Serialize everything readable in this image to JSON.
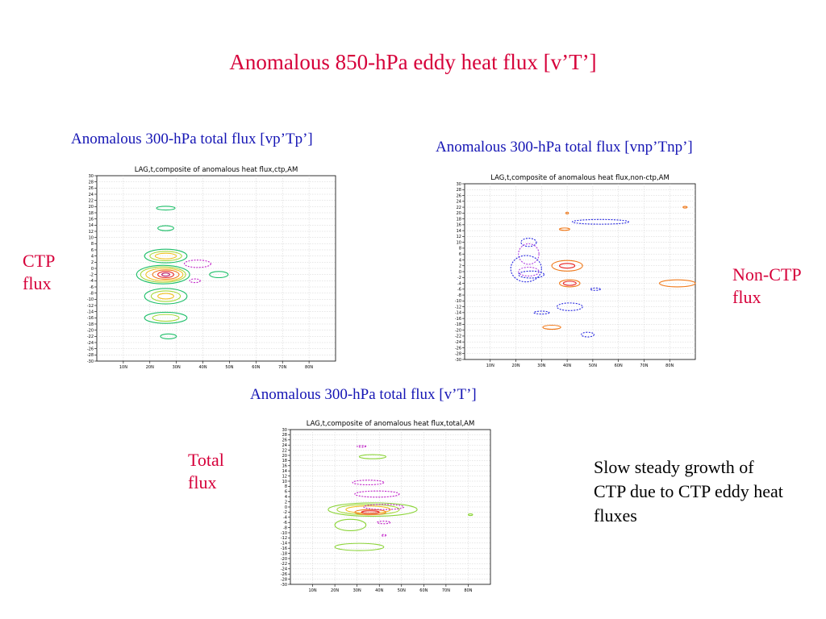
{
  "slide": {
    "title": "Anomalous 850-hPa eddy heat flux [v’T’]",
    "note": "Slow steady growth of CTP due to CTP eddy heat fluxes"
  },
  "panels": {
    "ctp": {
      "title": "Anomalous 300-hPa  total flux [vp’Tp’]",
      "side_label": "CTP flux"
    },
    "nonctp": {
      "title": "Anomalous 300-hPa  total flux [vnp’Tnp’]",
      "side_label": "Non-CTP flux"
    },
    "total": {
      "title": "Anomalous 300-hPa  total flux [v’T’]",
      "side_label": "Total flux"
    }
  },
  "chart_data": [
    {
      "id": "ctp",
      "type": "contour",
      "title": "LAG,t,composite of anomalous heat flux,ctp,AM",
      "xlim": [
        0,
        90
      ],
      "ylim": [
        -30,
        30
      ],
      "x_ticks": [
        "10N",
        "20N",
        "30N",
        "40N",
        "50N",
        "60N",
        "70N",
        "80N"
      ],
      "y_ticks": [
        "30",
        "28",
        "26",
        "24",
        "22",
        "20",
        "18",
        "16",
        "14",
        "12",
        "10",
        "8",
        "6",
        "4",
        "2",
        "0",
        "-2",
        "-4",
        "-6",
        "-8",
        "-10",
        "-12",
        "-14",
        "-16",
        "-18",
        "-20",
        "-22",
        "-24",
        "-26",
        "-28",
        "-30"
      ],
      "grid": true,
      "contours": [
        {
          "color": "#1fbf6a",
          "cx": 26,
          "cy": 19.5,
          "rx": 3.5,
          "ry": 0.6
        },
        {
          "color": "#1fbf6a",
          "cx": 26,
          "cy": 13,
          "rx": 3,
          "ry": 0.8
        },
        {
          "color": "#1fbf6a",
          "cx": 26,
          "cy": 4,
          "rx": 8,
          "ry": 2.2
        },
        {
          "color": "#a6d93a",
          "cx": 26,
          "cy": 4,
          "rx": 6,
          "ry": 1.5
        },
        {
          "color": "#f0c020",
          "cx": 26,
          "cy": 4,
          "rx": 4,
          "ry": 0.9
        },
        {
          "color": "#1fbf6a",
          "cx": 25,
          "cy": -2,
          "rx": 10,
          "ry": 3
        },
        {
          "color": "#a6d93a",
          "cx": 25,
          "cy": -2,
          "rx": 8.5,
          "ry": 2.5
        },
        {
          "color": "#f0c020",
          "cx": 25.5,
          "cy": -2,
          "rx": 7,
          "ry": 2
        },
        {
          "color": "#f07818",
          "cx": 26,
          "cy": -2,
          "rx": 5,
          "ry": 1.5
        },
        {
          "color": "#e82020",
          "cx": 26,
          "cy": -2,
          "rx": 3,
          "ry": 1
        },
        {
          "color": "#b01060",
          "cx": 26,
          "cy": -2,
          "rx": 1.5,
          "ry": 0.5
        },
        {
          "color": "#1fbf6a",
          "cx": 26,
          "cy": -9,
          "rx": 8,
          "ry": 2.5
        },
        {
          "color": "#a6d93a",
          "cx": 26,
          "cy": -9,
          "rx": 5.5,
          "ry": 1.7
        },
        {
          "color": "#f0c020",
          "cx": 26,
          "cy": -9,
          "rx": 3,
          "ry": 0.9
        },
        {
          "color": "#1fbf6a",
          "cx": 26,
          "cy": -16,
          "rx": 8,
          "ry": 1.8
        },
        {
          "color": "#a6d93a",
          "cx": 26,
          "cy": -16,
          "rx": 5,
          "ry": 1.1
        },
        {
          "color": "#1fbf6a",
          "cx": 27,
          "cy": -22,
          "rx": 3,
          "ry": 0.8
        },
        {
          "color": "#1fbf6a",
          "cx": 46,
          "cy": -2,
          "rx": 3.5,
          "ry": 1
        },
        {
          "color": "#c020c8",
          "cx": 38,
          "cy": 1.5,
          "rx": 5,
          "ry": 1.2,
          "dash": true
        },
        {
          "color": "#c020c8",
          "cx": 37,
          "cy": -4,
          "rx": 2,
          "ry": 0.6,
          "dash": true
        }
      ]
    },
    {
      "id": "nonctp",
      "type": "contour",
      "title": "LAG,t,composite of anomalous heat flux,non-ctp,AM",
      "xlim": [
        0,
        90
      ],
      "ylim": [
        -30,
        30
      ],
      "x_ticks": [
        "10N",
        "20N",
        "30N",
        "40N",
        "50N",
        "60N",
        "70N",
        "80N"
      ],
      "y_ticks": [
        "30",
        "28",
        "26",
        "24",
        "22",
        "20",
        "18",
        "16",
        "14",
        "12",
        "10",
        "8",
        "6",
        "4",
        "2",
        "0",
        "-2",
        "-4",
        "-6",
        "-8",
        "-10",
        "-12",
        "-14",
        "-16",
        "-18",
        "-20",
        "-22",
        "-24",
        "-26",
        "-28",
        "-30"
      ],
      "grid": true,
      "contours": [
        {
          "color": "#2a2ae0",
          "cx": 53,
          "cy": 17,
          "rx": 11,
          "ry": 0.8,
          "dash": true
        },
        {
          "color": "#f07818",
          "cx": 40,
          "cy": 20,
          "rx": 0.5,
          "ry": 0.3
        },
        {
          "color": "#f07818",
          "cx": 39,
          "cy": 14.5,
          "rx": 2,
          "ry": 0.4
        },
        {
          "color": "#2a2ae0",
          "cx": 25,
          "cy": 10,
          "rx": 3,
          "ry": 1.4,
          "dash": true
        },
        {
          "color": "#b040e0",
          "cx": 25,
          "cy": 6,
          "rx": 4,
          "ry": 3.5,
          "dash": true
        },
        {
          "color": "#2a2ae0",
          "cx": 24,
          "cy": 1,
          "rx": 6,
          "ry": 4.5,
          "dash": true
        },
        {
          "color": "#b040e0",
          "cx": 25,
          "cy": 0,
          "rx": 4,
          "ry": 1.5,
          "dash": true
        },
        {
          "color": "#2a2ae0",
          "cx": 26,
          "cy": -1,
          "rx": 5,
          "ry": 1.2,
          "dash": true
        },
        {
          "color": "#f07818",
          "cx": 40,
          "cy": 2,
          "rx": 6,
          "ry": 1.8
        },
        {
          "color": "#e82020",
          "cx": 40,
          "cy": 2,
          "rx": 3,
          "ry": 0.8
        },
        {
          "color": "#f07818",
          "cx": 41,
          "cy": -4,
          "rx": 4,
          "ry": 1.2
        },
        {
          "color": "#e82020",
          "cx": 41,
          "cy": -4,
          "rx": 2.5,
          "ry": 0.7
        },
        {
          "color": "#2a2ae0",
          "cx": 51,
          "cy": -6,
          "rx": 2,
          "ry": 0.4,
          "dash": true
        },
        {
          "color": "#2a2ae0",
          "cx": 41,
          "cy": -12,
          "rx": 5,
          "ry": 1.3,
          "dash": true
        },
        {
          "color": "#2a2ae0",
          "cx": 30,
          "cy": -14,
          "rx": 3,
          "ry": 0.5,
          "dash": true
        },
        {
          "color": "#f07818",
          "cx": 34,
          "cy": -19,
          "rx": 3.5,
          "ry": 0.7
        },
        {
          "color": "#2a2ae0",
          "cx": 48,
          "cy": -21.5,
          "rx": 2.5,
          "ry": 0.8,
          "dash": true
        },
        {
          "color": "#f07818",
          "cx": 83,
          "cy": -4,
          "rx": 7,
          "ry": 1.2
        },
        {
          "color": "#f07818",
          "cx": 86,
          "cy": 22,
          "rx": 0.8,
          "ry": 0.2
        }
      ]
    },
    {
      "id": "total",
      "type": "contour",
      "title": "LAG,t,composite of anomalous heat flux,total,AM",
      "xlim": [
        0,
        90
      ],
      "ylim": [
        -30,
        30
      ],
      "x_ticks": [
        "10N",
        "20N",
        "30N",
        "40N",
        "50N",
        "60N",
        "70N",
        "80N"
      ],
      "y_ticks": [
        "30",
        "28",
        "26",
        "24",
        "22",
        "20",
        "18",
        "16",
        "14",
        "12",
        "10",
        "8",
        "6",
        "4",
        "2",
        "0",
        "-2",
        "-4",
        "-6",
        "-8",
        "-10",
        "-12",
        "-14",
        "-16",
        "-18",
        "-20",
        "-22",
        "-24",
        "-26",
        "-28",
        "-30"
      ],
      "grid": true,
      "contours": [
        {
          "color": "#c020c8",
          "cx": 32,
          "cy": 23.5,
          "rx": 2,
          "ry": 0.3,
          "dash": true
        },
        {
          "color": "#8bd438",
          "cx": 37,
          "cy": 19.5,
          "rx": 6,
          "ry": 0.8
        },
        {
          "color": "#c020c8",
          "cx": 35,
          "cy": 9.5,
          "rx": 7,
          "ry": 0.9,
          "dash": true
        },
        {
          "color": "#c020c8",
          "cx": 39,
          "cy": 5,
          "rx": 10,
          "ry": 1.2,
          "dash": true
        },
        {
          "color": "#8bd438",
          "cx": 37,
          "cy": -1,
          "rx": 20,
          "ry": 2.6
        },
        {
          "color": "#a6d93a",
          "cx": 35,
          "cy": -1,
          "rx": 14,
          "ry": 2
        },
        {
          "color": "#f0c020",
          "cx": 35,
          "cy": -1,
          "rx": 10,
          "ry": 1.4
        },
        {
          "color": "#f07818",
          "cx": 36,
          "cy": -2,
          "rx": 7,
          "ry": 1
        },
        {
          "color": "#e82020",
          "cx": 36,
          "cy": -2,
          "rx": 4,
          "ry": 0.5
        },
        {
          "color": "#c020c8",
          "cx": 42,
          "cy": 0,
          "rx": 9,
          "ry": 1,
          "dash": true
        },
        {
          "color": "#c020c8",
          "cx": 42,
          "cy": -6,
          "rx": 3,
          "ry": 0.5,
          "dash": true
        },
        {
          "color": "#8bd438",
          "cx": 27,
          "cy": -7,
          "rx": 7,
          "ry": 2.2
        },
        {
          "color": "#c020c8",
          "cx": 42,
          "cy": -11,
          "rx": 1,
          "ry": 0.3,
          "dash": true
        },
        {
          "color": "#8bd438",
          "cx": 31,
          "cy": -15.5,
          "rx": 11,
          "ry": 1.4
        },
        {
          "color": "#8bd438",
          "cx": 81,
          "cy": -3,
          "rx": 1,
          "ry": 0.2
        }
      ]
    }
  ]
}
